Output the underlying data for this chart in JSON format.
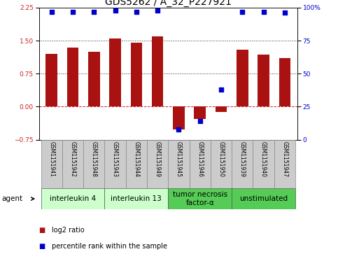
{
  "title": "GDS5262 / A_32_P227921",
  "samples": [
    "GSM1151941",
    "GSM1151942",
    "GSM1151948",
    "GSM1151943",
    "GSM1151944",
    "GSM1151949",
    "GSM1151945",
    "GSM1151946",
    "GSM1151950",
    "GSM1151939",
    "GSM1151940",
    "GSM1151947"
  ],
  "log2_ratio": [
    1.2,
    1.35,
    1.25,
    1.55,
    1.45,
    1.6,
    -0.52,
    -0.28,
    -0.12,
    1.3,
    1.18,
    1.1
  ],
  "percentile_rank": [
    97,
    97,
    97,
    98,
    97,
    98,
    8,
    14,
    38,
    97,
    97,
    96
  ],
  "ylim_left": [
    -0.75,
    2.25
  ],
  "ylim_right": [
    0,
    100
  ],
  "yticks_left": [
    -0.75,
    0,
    0.75,
    1.5,
    2.25
  ],
  "yticks_right": [
    0,
    25,
    50,
    75,
    100
  ],
  "hlines": [
    0,
    0.75,
    1.5
  ],
  "hline_styles": [
    "dashed",
    "dotted",
    "dotted"
  ],
  "hline_colors": [
    "#cc2222",
    "#333333",
    "#333333"
  ],
  "bar_color": "#aa1111",
  "dot_color": "#0000cc",
  "bar_width": 0.55,
  "groups": [
    {
      "label": "interleukin 4",
      "start": 0,
      "end": 3,
      "color": "#ccffcc"
    },
    {
      "label": "interleukin 13",
      "start": 3,
      "end": 6,
      "color": "#ccffcc"
    },
    {
      "label": "tumor necrosis\nfactor-α",
      "start": 6,
      "end": 9,
      "color": "#55cc55"
    },
    {
      "label": "unstimulated",
      "start": 9,
      "end": 12,
      "color": "#55cc55"
    }
  ],
  "legend_items": [
    {
      "label": "log2 ratio",
      "color": "#aa1111"
    },
    {
      "label": "percentile rank within the sample",
      "color": "#0000cc"
    }
  ],
  "title_fontsize": 10,
  "tick_fontsize": 6.5,
  "sample_fontsize": 5.5,
  "group_label_fontsize": 7.5
}
